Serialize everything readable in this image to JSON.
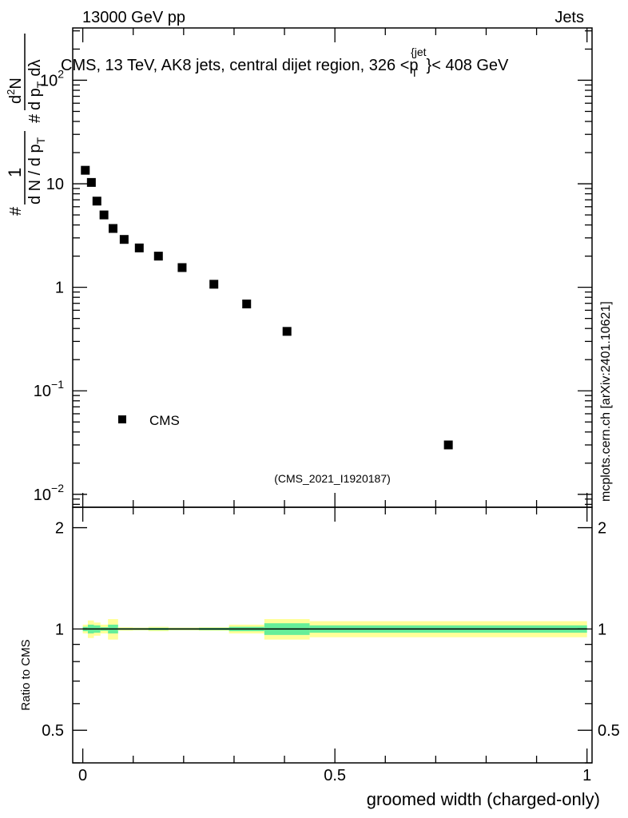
{
  "header": {
    "left": "13000 GeV pp",
    "right": "Jets"
  },
  "side_label": "mcplots.cern.ch [arXiv:2401.10621]",
  "chart_data": [
    {
      "type": "scatter",
      "title": "CMS, 13 TeV, AK8 jets, central dijet region, 326 <p",
      "title_sup": "{jet",
      "title_sub": "T",
      "title_tail": "}< 408 GeV",
      "ylabel": {
        "hash": "#",
        "one": "1",
        "den": "d N / d p",
        "den_sub": "T",
        "hash2": "#",
        "num2": "d",
        "num2_sup": "2",
        "num2_tail": "N",
        "den2": "d p",
        "den2_sub": "T",
        "den2_tail": "dλ"
      },
      "yscale": "log",
      "ylim": [
        0.0075,
        320
      ],
      "xlim": [
        -0.02,
        1.01
      ],
      "ytick_labels": [
        {
          "value": 0.01,
          "base": "10",
          "exp": "−2"
        },
        {
          "value": 0.1,
          "base": "10",
          "exp": "−1"
        },
        {
          "value": 1,
          "base": "1",
          "exp": ""
        },
        {
          "value": 10,
          "base": "10",
          "exp": ""
        },
        {
          "value": 100,
          "base": "10",
          "exp": "2"
        }
      ],
      "series": [
        {
          "name": "CMS",
          "x": [
            0.005,
            0.017,
            0.028,
            0.042,
            0.06,
            0.082,
            0.112,
            0.15,
            0.197,
            0.26,
            0.325,
            0.405,
            0.725
          ],
          "y": [
            13.5,
            10.3,
            6.8,
            5.0,
            3.7,
            2.9,
            2.4,
            2.0,
            1.55,
            1.07,
            0.69,
            0.375,
            0.03
          ]
        }
      ],
      "legend": {
        "label": "CMS",
        "placement": "bottom-left"
      },
      "watermark": "(CMS_2021_I1920187)"
    },
    {
      "type": "area",
      "ylabel": "Ratio to CMS",
      "xlabel": "groomed width (charged-only)",
      "ylim": [
        0.4,
        2.3
      ],
      "yscale": "log",
      "ytick_labels": [
        {
          "value": 0.5,
          "label": "0.5"
        },
        {
          "value": 1,
          "label": "1"
        },
        {
          "value": 2,
          "label": "2"
        }
      ],
      "xtick_labels": [
        {
          "value": 0,
          "label": "0"
        },
        {
          "value": 0.5,
          "label": "0.5"
        },
        {
          "value": 1,
          "label": "1"
        }
      ],
      "reference_line": 1.0,
      "bins": [
        {
          "lo": 0.0,
          "hi": 0.01,
          "inner": 0.015,
          "outer": 0.03
        },
        {
          "lo": 0.01,
          "hi": 0.022,
          "inner": 0.03,
          "outer": 0.06
        },
        {
          "lo": 0.022,
          "hi": 0.035,
          "inner": 0.025,
          "outer": 0.045
        },
        {
          "lo": 0.035,
          "hi": 0.05,
          "inner": 0.012,
          "outer": 0.03
        },
        {
          "lo": 0.05,
          "hi": 0.07,
          "inner": 0.03,
          "outer": 0.07
        },
        {
          "lo": 0.07,
          "hi": 0.1,
          "inner": 0.006,
          "outer": 0.012
        },
        {
          "lo": 0.1,
          "hi": 0.13,
          "inner": 0.006,
          "outer": 0.01
        },
        {
          "lo": 0.13,
          "hi": 0.17,
          "inner": 0.008,
          "outer": 0.015
        },
        {
          "lo": 0.17,
          "hi": 0.23,
          "inner": 0.006,
          "outer": 0.01
        },
        {
          "lo": 0.23,
          "hi": 0.29,
          "inner": 0.008,
          "outer": 0.012
        },
        {
          "lo": 0.29,
          "hi": 0.36,
          "inner": 0.015,
          "outer": 0.03
        },
        {
          "lo": 0.36,
          "hi": 0.45,
          "inner": 0.04,
          "outer": 0.07
        },
        {
          "lo": 0.45,
          "hi": 1.0,
          "inner": 0.025,
          "outer": 0.055
        }
      ]
    }
  ],
  "colors": {
    "marker": "#000000",
    "inner_band": "#66ee99",
    "outer_band": "#ffff99",
    "watermark": "#999999"
  }
}
